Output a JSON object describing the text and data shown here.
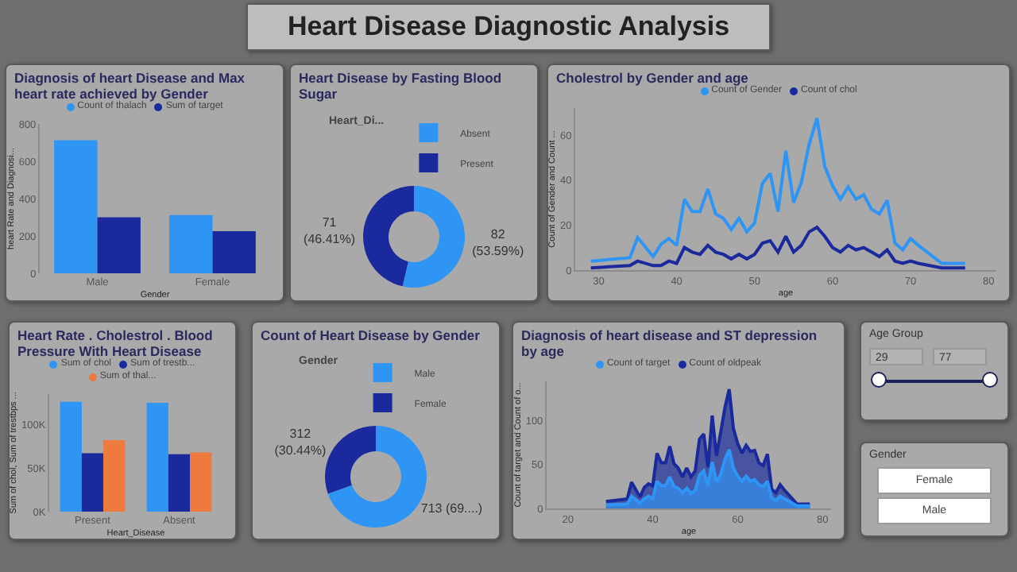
{
  "chart_data": [
    {
      "type": "other",
      "title": "Heart Disease Diagnostic Analysis"
    },
    {
      "type": "bar",
      "title": "Diagnosis of heart Disease and Max heart rate achieved by Gender",
      "categories": [
        "Male",
        "Female"
      ],
      "xlabel": "Gender",
      "ylabel": "heart Rate and Diagnosi...",
      "ylim": [
        0,
        800
      ],
      "yticks": [
        0,
        200,
        400,
        600,
        800
      ],
      "legend": "top",
      "series": [
        {
          "name": "Count of thalach",
          "color": "#2e95f5",
          "values": [
            713,
            312
          ]
        },
        {
          "name": "Sum of target",
          "color": "#1a2a9c",
          "values": [
            300,
            226
          ]
        }
      ]
    },
    {
      "type": "donut",
      "title": "Heart Disease by Fasting Blood Sugar",
      "legend_title": "Heart_Di...",
      "legend": "top",
      "categories": [
        "Absent",
        "Present"
      ],
      "values": [
        82,
        71
      ],
      "colors": [
        "#2e95f5",
        "#1a2a9c"
      ],
      "value_labels": [
        "82\n(53.59%)",
        "71\n(46.41%)"
      ]
    },
    {
      "type": "line",
      "title": "Cholestrol by Gender and age",
      "xlabel": "age",
      "ylabel": "Count of Gender and Count ...",
      "xlim": [
        27,
        81
      ],
      "xticks": [
        30,
        40,
        50,
        60,
        70,
        80
      ],
      "ylim": [
        0,
        72
      ],
      "yticks": [
        0,
        20,
        40,
        60
      ],
      "legend": "top",
      "x": [
        29,
        34,
        35,
        37,
        38,
        39,
        40,
        41,
        42,
        43,
        44,
        45,
        46,
        47,
        48,
        49,
        50,
        51,
        52,
        53,
        54,
        55,
        56,
        57,
        58,
        59,
        60,
        61,
        62,
        63,
        64,
        65,
        66,
        67,
        68,
        69,
        70,
        71,
        74,
        76,
        77
      ],
      "series": [
        {
          "name": "Count of Gender",
          "color": "#2e95f5",
          "values": [
            4,
            5.5,
            14.5,
            6,
            11.5,
            14,
            11,
            31.5,
            26,
            26,
            36,
            25,
            23,
            18,
            23,
            17,
            21,
            38.5,
            43,
            26,
            53,
            30,
            39,
            56,
            67.5,
            46,
            37.5,
            31.5,
            37,
            31.5,
            33.5,
            27,
            25,
            31,
            12,
            9,
            14,
            11,
            3,
            3,
            3
          ]
        },
        {
          "name": "Count of chol",
          "color": "#1a2a9c",
          "values": [
            1,
            2,
            4,
            2,
            2,
            4,
            3,
            10,
            8,
            7,
            11,
            8,
            7,
            5,
            7,
            5,
            7,
            12,
            13,
            8,
            15,
            8,
            11,
            17,
            19,
            15,
            10,
            8,
            11,
            9,
            10,
            8,
            6,
            9,
            4,
            3,
            4,
            3,
            1,
            1,
            1
          ]
        }
      ]
    },
    {
      "type": "bar",
      "title": "Heart Rate . Cholestrol . Blood Pressure With Heart Disease",
      "categories": [
        "Present",
        "Absent"
      ],
      "xlabel": "Heart_Disease",
      "ylabel": "Sum of chol, Sum of trestbps ...",
      "ylim": [
        0,
        135000
      ],
      "yticks": [
        {
          "value": 0,
          "label": "0K"
        },
        {
          "value": 50000,
          "label": "50K"
        },
        {
          "value": 100000,
          "label": "100K"
        }
      ],
      "legend": "top",
      "series": [
        {
          "name": "Sum of chol",
          "color": "#2e95f5",
          "values": [
            126000,
            125000
          ]
        },
        {
          "name": "Sum of trestb...",
          "color": "#1a2a9c",
          "values": [
            67000,
            66000
          ]
        },
        {
          "name": "Sum of thal...",
          "color": "#ee7a3e",
          "values": [
            82000,
            68000
          ]
        }
      ]
    },
    {
      "type": "donut",
      "title": "Count of Heart Disease by Gender",
      "legend_title": "Gender",
      "legend": "top",
      "categories": [
        "Male",
        "Female"
      ],
      "values": [
        713,
        312
      ],
      "colors": [
        "#2e95f5",
        "#1a2a9c"
      ],
      "value_labels": [
        "713 (69....)",
        "312\n(30.44%)"
      ]
    },
    {
      "type": "area",
      "title": "Diagnosis of heart disease and ST depression by age",
      "xlabel": "age",
      "ylabel": "Count of target and Count of o...",
      "xlim": [
        15,
        82
      ],
      "xticks": [
        20,
        40,
        60,
        80
      ],
      "ylim": [
        0,
        145
      ],
      "yticks": [
        0,
        50,
        100
      ],
      "legend": "top",
      "x": [
        29,
        34,
        35,
        37,
        38,
        39,
        40,
        41,
        42,
        43,
        44,
        45,
        46,
        47,
        48,
        49,
        50,
        51,
        52,
        53,
        54,
        55,
        56,
        57,
        58,
        59,
        60,
        61,
        62,
        63,
        64,
        65,
        66,
        67,
        68,
        69,
        70,
        71,
        74,
        76,
        77
      ],
      "series": [
        {
          "name": "Count of target",
          "color": "#2e95f5",
          "values": [
            4,
            5,
            14,
            6,
            11,
            14,
            11,
            31,
            26,
            26,
            36,
            25,
            23,
            18,
            23,
            17,
            21,
            38,
            43,
            26,
            53,
            30,
            39,
            56,
            67,
            46,
            37,
            31,
            37,
            31,
            33,
            27,
            25,
            31,
            12,
            9,
            14,
            11,
            3,
            3,
            3
          ]
        },
        {
          "name": "Count of oldpeak",
          "color": "#1a2a9c",
          "values": [
            8,
            11,
            30,
            13,
            24,
            28,
            26,
            63,
            52,
            52,
            71,
            51,
            46,
            36,
            46,
            36,
            43,
            79,
            85,
            47,
            106,
            60,
            87,
            115,
            136,
            91,
            74,
            63,
            72,
            65,
            66,
            52,
            49,
            62,
            22,
            18,
            27,
            21,
            5,
            5,
            5
          ]
        }
      ]
    },
    {
      "type": "other",
      "title": "Age Group",
      "annotations": [
        "29",
        "77"
      ]
    },
    {
      "type": "other",
      "title": "Gender",
      "annotations": [
        "Female",
        "Male"
      ]
    }
  ]
}
